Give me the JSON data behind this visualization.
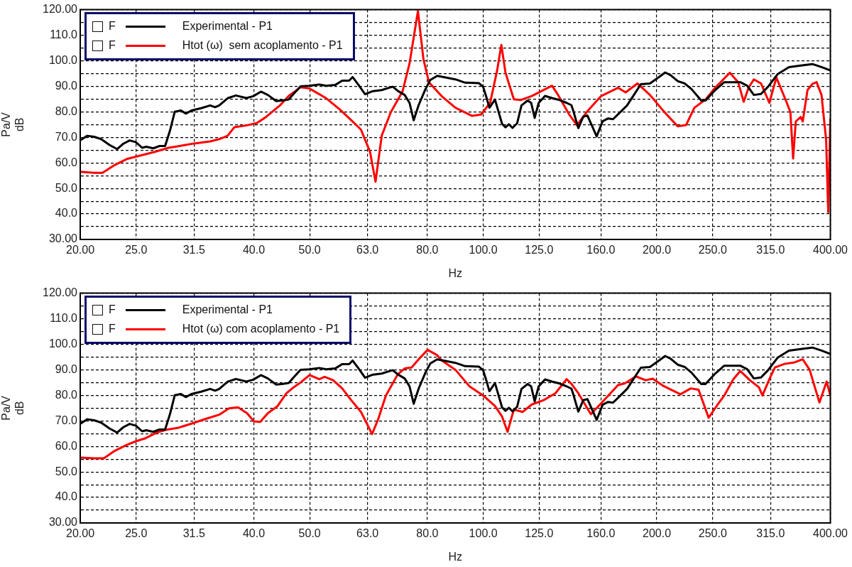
{
  "chart_data": [
    {
      "type": "line",
      "xlabel": "Hz",
      "ylabel": "Pa/V\ndB",
      "log": "x",
      "grid": true,
      "legend": "top left",
      "annotations": [
        "F",
        "F"
      ],
      "xlim": [
        20,
        400
      ],
      "xticks": [
        {
          "value": 20,
          "label": "20.00"
        },
        {
          "value": 25,
          "label": "25.0"
        },
        {
          "value": 31.5,
          "label": "31.5"
        },
        {
          "value": 40,
          "label": "40.0"
        },
        {
          "value": 50,
          "label": "50.0"
        },
        {
          "value": 63,
          "label": "63.0"
        },
        {
          "value": 80,
          "label": "80.0"
        },
        {
          "value": 100,
          "label": "100.0"
        },
        {
          "value": 125,
          "label": "125.0"
        },
        {
          "value": 160,
          "label": "160.0"
        },
        {
          "value": 200,
          "label": "200.0"
        },
        {
          "value": 250,
          "label": "250.0"
        },
        {
          "value": 315,
          "label": "315.0"
        },
        {
          "value": 400,
          "label": "400.00"
        }
      ],
      "ylim": [
        30,
        120
      ],
      "yticks": [
        {
          "value": 30,
          "label": "30.00"
        },
        {
          "value": 35,
          "label": null
        },
        {
          "value": 40,
          "label": "40.0"
        },
        {
          "value": 45,
          "label": null
        },
        {
          "value": 50,
          "label": "50.0"
        },
        {
          "value": 55,
          "label": null
        },
        {
          "value": 60,
          "label": "60.0"
        },
        {
          "value": 65,
          "label": null
        },
        {
          "value": 70,
          "label": "70.0"
        },
        {
          "value": 75,
          "label": null
        },
        {
          "value": 80,
          "label": "80.0"
        },
        {
          "value": 85,
          "label": null
        },
        {
          "value": 90,
          "label": "90.0"
        },
        {
          "value": 95,
          "label": null
        },
        {
          "value": 100,
          "label": "100.0"
        },
        {
          "value": 105,
          "label": null
        },
        {
          "value": 110,
          "label": "110.0"
        },
        {
          "value": 115,
          "label": null
        },
        {
          "value": 120,
          "label": "120.00"
        }
      ],
      "series": [
        {
          "name": "Experimental - P1",
          "color": "#000000",
          "x": [
            20,
            20.57,
            21.14,
            21.74,
            22.48,
            23.17,
            23.76,
            24.37,
            24.98,
            25.61,
            26.04,
            26.77,
            27.45,
            28.07,
            28.61,
            29.17,
            29.9,
            30.5,
            31.19,
            32.42,
            33.61,
            34.27,
            34.84,
            36.02,
            37.24,
            38.83,
            39.91,
            41.16,
            42.31,
            43.74,
            44.97,
            45.98,
            46.88,
            48.21,
            49.97,
            51.95,
            53.42,
            55.36,
            56.93,
            58.53,
            59.35,
            60.69,
            62.39,
            64.15,
            66.68,
            68.57,
            69.71,
            71.08,
            73.07,
            74.5,
            75.75,
            77.26,
            79.4,
            80.97,
            83.22,
            86.32,
            89.48,
            93.02,
            98.33,
            99.96,
            101.4,
            102.5,
            104.8,
            107.8,
            109.3,
            110.8,
            112.4,
            114.5,
            116.5,
            119.4,
            121.1,
            122.8,
            124.8,
            128.0,
            131.9,
            135.7,
            139.5,
            142.2,
            143.1,
            146.2,
            149.1,
            151.6,
            157.3,
            161.1,
            164.7,
            167.9,
            172.7,
            177.6,
            182.5,
            187.7,
            194.6,
            202.3,
            206.8,
            211.4,
            217.4,
            223.5,
            229.7,
            238.9,
            242.9,
            252.5,
            261.8,
            279.1,
            286.9,
            294.7,
            303.2,
            311.8,
            324.2,
            339,
            355.3,
            372.3,
            386.1,
            400
          ],
          "values": [
            68.8,
            70.6,
            70.2,
            69.3,
            67.0,
            65.4,
            67.5,
            68.8,
            68.1,
            65.9,
            66.3,
            65.7,
            66.6,
            66.6,
            72.5,
            80.0,
            80.5,
            79.3,
            80.5,
            81.4,
            82.5,
            81.8,
            82.5,
            85.3,
            86.4,
            85.4,
            86.1,
            87.9,
            86.6,
            84.2,
            84.5,
            84.8,
            87.0,
            90.0,
            90.2,
            90.7,
            90.2,
            90.5,
            92.2,
            92.2,
            93.6,
            90.7,
            86.9,
            88.0,
            88.5,
            89.4,
            89.8,
            88.2,
            86.6,
            83.5,
            76.7,
            82.6,
            88.9,
            92.5,
            94.1,
            93.4,
            92.7,
            91.4,
            91.2,
            89.8,
            85.3,
            81.6,
            84.8,
            75.3,
            73.9,
            75.1,
            73.7,
            75.5,
            82.5,
            84.4,
            83.5,
            77.6,
            83.5,
            86.2,
            85.3,
            84.6,
            83.5,
            82.6,
            80.8,
            73.6,
            78.1,
            78.5,
            70.4,
            76.3,
            77.4,
            77.1,
            79.8,
            82.5,
            86.6,
            90.8,
            91.1,
            93.8,
            95.4,
            94.3,
            92.0,
            91.1,
            88.9,
            84.4,
            84.4,
            88.5,
            91.6,
            91.6,
            90.2,
            86.6,
            87.0,
            89.8,
            94.8,
            97.5,
            98.1,
            98.7,
            97.5,
            96.2
          ]
        },
        {
          "name": "Htot (ω)  sem acoplamento - P1",
          "color": "#ff0000",
          "x": [
            20,
            21.14,
            21.86,
            22.97,
            24.09,
            25.47,
            26.93,
            28.46,
            30.07,
            31.53,
            33.61,
            34.84,
            36.02,
            37.03,
            38.93,
            40.48,
            41.96,
            44.36,
            45.98,
            48.21,
            49.97,
            53.42,
            56.46,
            59.68,
            61.37,
            63.61,
            65.04,
            66.68,
            69.13,
            72.46,
            74.5,
            77.04,
            78.76,
            80.52,
            84.65,
            89.48,
            95.64,
            99.11,
            102.8,
            105.7,
            107.5,
            109.3,
            113,
            116.1,
            121.4,
            131.6,
            134.5,
            141,
            145.4,
            151.6,
            160.2,
            171.3,
            176.6,
            185.1,
            194.6,
            205.6,
            217.4,
            224.8,
            232.4,
            242.9,
            252.5,
            267.7,
            276.8,
            283,
            288.5,
            294.7,
            303.2,
            313.5,
            322.4,
            336.2,
            341,
            344.7,
            348.4,
            355.3,
            358.2,
            365.1,
            372.3,
            378.6,
            386.1,
            393.3,
            396.6,
            400
          ],
          "values": [
            56.5,
            56.1,
            56.1,
            59.2,
            61.5,
            62.9,
            64.3,
            65.9,
            66.8,
            67.6,
            68.4,
            69.3,
            70.6,
            74.0,
            74.7,
            75.6,
            77.9,
            82.4,
            86.2,
            89.6,
            89.1,
            85.3,
            80.8,
            75.7,
            73.0,
            64.4,
            52.6,
            70.7,
            79.8,
            88.0,
            98.9,
            119.5,
            100.6,
            91.5,
            86.2,
            81.6,
            78.4,
            78.9,
            83.5,
            96.2,
            106.2,
            95.3,
            84.9,
            84.6,
            86.2,
            90.2,
            87.0,
            78.9,
            74.8,
            80.2,
            86.2,
            89.4,
            87.6,
            91.1,
            86.6,
            80.2,
            74.3,
            74.8,
            81.6,
            84.8,
            89.4,
            95.3,
            91.6,
            83.9,
            89.4,
            92.7,
            91.1,
            83.5,
            93.4,
            83.5,
            79.8,
            61.7,
            76.2,
            78.0,
            76.2,
            88.5,
            90.9,
            91.6,
            86.6,
            68.9,
            40.7,
            77.0
          ]
        }
      ]
    },
    {
      "type": "line",
      "xlabel": "Hz",
      "ylabel": "Pa/V\ndB",
      "log": "x",
      "grid": true,
      "legend": "top left",
      "annotations": [
        "F",
        "F"
      ],
      "xlim": [
        20,
        400
      ],
      "xticks": [
        {
          "value": 20,
          "label": "20.00"
        },
        {
          "value": 25,
          "label": "25.0"
        },
        {
          "value": 31.5,
          "label": "31.5"
        },
        {
          "value": 40,
          "label": "40.0"
        },
        {
          "value": 50,
          "label": "50.0"
        },
        {
          "value": 63,
          "label": "63.0"
        },
        {
          "value": 80,
          "label": "80.0"
        },
        {
          "value": 100,
          "label": "100.0"
        },
        {
          "value": 125,
          "label": "125.0"
        },
        {
          "value": 160,
          "label": "160.0"
        },
        {
          "value": 200,
          "label": "200.0"
        },
        {
          "value": 250,
          "label": "250.0"
        },
        {
          "value": 315,
          "label": "315.0"
        },
        {
          "value": 400,
          "label": "400.00"
        }
      ],
      "ylim": [
        30,
        120
      ],
      "yticks": [
        {
          "value": 30,
          "label": "30.00"
        },
        {
          "value": 35,
          "label": null
        },
        {
          "value": 40,
          "label": "40.0"
        },
        {
          "value": 45,
          "label": null
        },
        {
          "value": 50,
          "label": "50.0"
        },
        {
          "value": 55,
          "label": null
        },
        {
          "value": 60,
          "label": "60.0"
        },
        {
          "value": 65,
          "label": null
        },
        {
          "value": 70,
          "label": "70.0"
        },
        {
          "value": 75,
          "label": null
        },
        {
          "value": 80,
          "label": "80.0"
        },
        {
          "value": 85,
          "label": null
        },
        {
          "value": 90,
          "label": "90.0"
        },
        {
          "value": 95,
          "label": null
        },
        {
          "value": 100,
          "label": "100.0"
        },
        {
          "value": 105,
          "label": null
        },
        {
          "value": 110,
          "label": "110.0"
        },
        {
          "value": 115,
          "label": null
        },
        {
          "value": 120,
          "label": "120.00"
        }
      ],
      "series": [
        {
          "name": "Experimental - P1",
          "color": "#000000",
          "x": [
            20,
            20.57,
            21.14,
            21.74,
            22.48,
            23.17,
            23.76,
            24.37,
            24.98,
            25.61,
            26.04,
            26.77,
            27.45,
            28.07,
            28.61,
            29.17,
            29.9,
            30.5,
            31.19,
            32.42,
            33.61,
            34.27,
            34.84,
            36.02,
            37.24,
            38.83,
            39.91,
            41.16,
            42.31,
            43.74,
            44.97,
            45.98,
            46.88,
            48.21,
            49.97,
            51.95,
            53.42,
            55.36,
            56.93,
            58.53,
            59.35,
            60.69,
            62.39,
            64.15,
            66.68,
            68.57,
            69.71,
            71.08,
            73.07,
            74.5,
            75.75,
            77.26,
            79.4,
            80.97,
            83.22,
            86.32,
            89.48,
            93.02,
            98.33,
            99.96,
            101.4,
            102.5,
            104.8,
            107.8,
            109.3,
            110.8,
            112.4,
            114.5,
            116.5,
            119.4,
            121.1,
            122.8,
            124.8,
            128.0,
            131.9,
            135.7,
            139.5,
            142.2,
            143.1,
            146.2,
            149.1,
            151.6,
            157.3,
            161.1,
            164.7,
            167.9,
            172.7,
            177.6,
            182.5,
            187.7,
            194.6,
            202.3,
            206.8,
            211.4,
            217.4,
            223.5,
            229.7,
            238.9,
            242.9,
            252.5,
            261.8,
            279.1,
            286.9,
            294.7,
            303.2,
            311.8,
            324.2,
            339,
            355.3,
            372.3,
            386.1,
            400
          ],
          "values": [
            68.8,
            70.6,
            70.2,
            69.3,
            67.0,
            65.4,
            67.5,
            68.8,
            68.1,
            65.9,
            66.3,
            65.7,
            66.6,
            66.6,
            72.5,
            80.0,
            80.5,
            79.3,
            80.5,
            81.4,
            82.5,
            81.8,
            82.5,
            85.3,
            86.4,
            85.4,
            86.1,
            87.9,
            86.6,
            84.2,
            84.5,
            84.8,
            87.0,
            90.0,
            90.2,
            90.7,
            90.2,
            90.5,
            92.2,
            92.2,
            93.6,
            90.7,
            86.9,
            88.0,
            88.5,
            89.4,
            89.8,
            88.2,
            86.6,
            83.5,
            76.7,
            82.6,
            88.9,
            92.5,
            94.1,
            93.4,
            92.7,
            91.4,
            91.2,
            89.8,
            85.3,
            81.6,
            84.8,
            75.3,
            73.9,
            75.1,
            73.7,
            75.5,
            82.5,
            84.4,
            83.5,
            77.6,
            83.5,
            86.2,
            85.3,
            84.6,
            83.5,
            82.6,
            80.8,
            73.6,
            78.1,
            78.5,
            70.4,
            76.3,
            77.4,
            77.1,
            79.8,
            82.5,
            86.6,
            90.8,
            91.1,
            93.8,
            95.4,
            94.3,
            92.0,
            91.1,
            88.9,
            84.4,
            84.4,
            88.5,
            91.6,
            91.6,
            90.2,
            86.6,
            87.0,
            89.8,
            94.8,
            97.5,
            98.1,
            98.7,
            97.5,
            96.2
          ]
        },
        {
          "name": "Htot (ω) com acoplamento - P1",
          "color": "#ff0000",
          "x": [
            20,
            21.14,
            21.98,
            22.97,
            24.09,
            24.98,
            25.97,
            27.14,
            28.22,
            29.5,
            31.19,
            32.95,
            34.84,
            36.21,
            37.55,
            38.93,
            40.02,
            41.04,
            42.31,
            43.99,
            45.58,
            46.88,
            48.21,
            49.97,
            51.95,
            53.1,
            54.91,
            56.93,
            59.01,
            61.37,
            64.15,
            65.75,
            67.79,
            71.08,
            73.07,
            75.12,
            77.26,
            80.07,
            83.22,
            84.65,
            89.48,
            94.57,
            99.96,
            104.8,
            107.8,
            110.2,
            113,
            117.1,
            121.4,
            127.3,
            133.4,
            139.5,
            142.2,
            146.2,
            153.7,
            162,
            171.3,
            176.1,
            184,
            191.3,
            196.8,
            205.6,
            219.8,
            229.1,
            236.3,
            246,
            254.7,
            261.8,
            271.5,
            279.1,
            290.1,
            300.7,
            305,
            313.5,
            320.6,
            333.2,
            345.6,
            358.2,
            368.2,
            382.9,
            394.1,
            400
          ],
          "values": [
            55.6,
            55.3,
            55.3,
            58.3,
            60.6,
            62.0,
            63.2,
            65.4,
            66.5,
            67.2,
            68.9,
            70.7,
            72.4,
            74.9,
            75.3,
            73.0,
            69.8,
            69.6,
            73.0,
            75.8,
            80.8,
            83.1,
            85.0,
            87.9,
            86.3,
            87.2,
            85.9,
            82.7,
            78.1,
            73.5,
            64.8,
            70.7,
            79.9,
            88.2,
            90.5,
            90.9,
            94.1,
            97.8,
            95.7,
            93.7,
            90.0,
            83.6,
            79.9,
            75.8,
            71.7,
            65.7,
            74.4,
            73.5,
            76.4,
            78.1,
            80.8,
            86.3,
            84.5,
            80.8,
            72.6,
            78.1,
            84.0,
            84.7,
            87.4,
            85.9,
            86.5,
            83.6,
            80.4,
            82.7,
            82.2,
            71.2,
            76.2,
            79.9,
            86.3,
            89.5,
            85.9,
            83.1,
            79.9,
            86.3,
            90.9,
            92.3,
            92.8,
            94.1,
            90.0,
            77.2,
            85.4,
            79.9
          ]
        }
      ]
    }
  ]
}
